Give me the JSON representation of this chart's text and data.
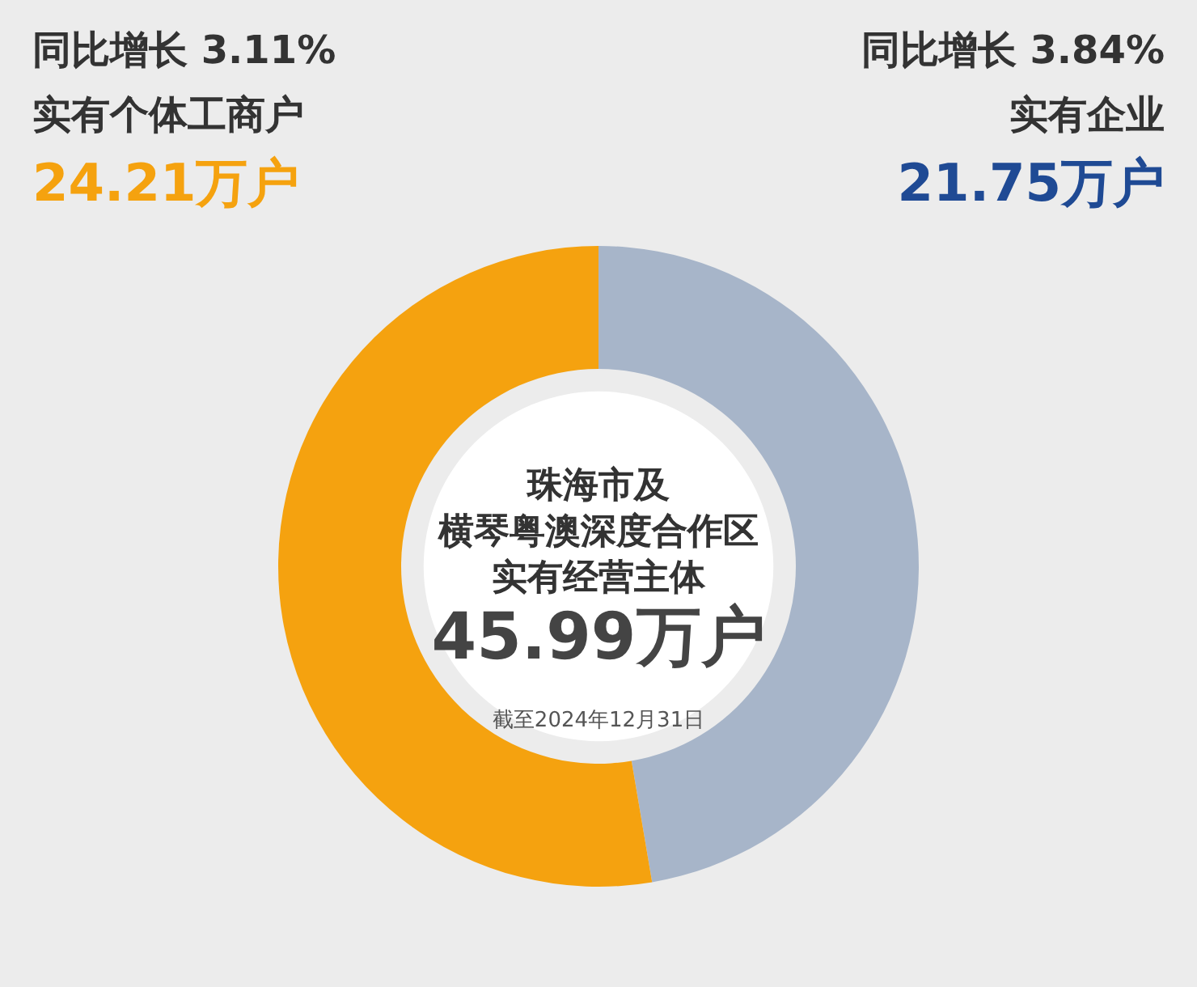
{
  "chart_data": {
    "type": "donut",
    "title": "珠海市及横琴粤澳深度合作区实有经营主体",
    "categories": [
      "实有企业",
      "实有个体工商户"
    ],
    "values": [
      21.75,
      24.21
    ],
    "colors": [
      "#a7b5c9",
      "#f5a20f"
    ],
    "value_labels": [
      "21.75万户",
      "24.21万户"
    ],
    "annotations": [
      "同比增长 3.84%",
      "同比增长 3.11%",
      "45.99万户",
      "截至2024年12月31日"
    ]
  }
}
